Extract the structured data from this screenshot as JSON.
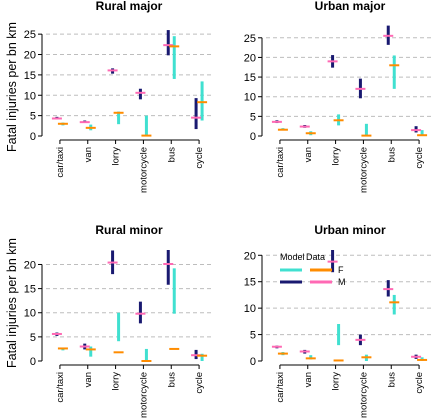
{
  "chart_data": {
    "type": "range-interval",
    "ylabel": "Fatal injuries per bn km",
    "categories": [
      "car/taxi",
      "van",
      "lorry",
      "motorcycle",
      "bus",
      "cycle"
    ],
    "legend": {
      "location": "top-left of Urban minor panel",
      "title_left": "Model",
      "title_right": "Data",
      "rows": [
        {
          "label": "F",
          "model_color": "#40e0d0",
          "data_color": "#ff8c00"
        },
        {
          "label": "M",
          "model_color": "#191970",
          "data_color": "#ff69b4"
        }
      ]
    },
    "colors": {
      "model_F": "#40e0d0",
      "model_M": "#191970",
      "data_F": "#ff8c00",
      "data_M": "#ff69b4",
      "grid": "#bdbdbd"
    },
    "panels": [
      {
        "title": "Rural major",
        "ylim": [
          0,
          27
        ],
        "yticks": [
          0,
          5,
          10,
          15,
          20,
          25
        ],
        "model_M": [
          [
            4.1,
            4.7
          ],
          [
            3.2,
            3.8
          ],
          [
            15.3,
            16.6
          ],
          [
            9.0,
            11.6
          ],
          [
            19.8,
            26.0
          ],
          [
            1.7,
            9.3
          ]
        ],
        "data_M": [
          4.3,
          3.4,
          16.1,
          10.6,
          22.3,
          4.5
        ],
        "model_F": [
          [
            2.6,
            3.3
          ],
          [
            1.4,
            2.8
          ],
          [
            2.9,
            6.0
          ],
          [
            0.2,
            5.0
          ],
          [
            14.0,
            24.5
          ],
          [
            3.8,
            13.4
          ]
        ],
        "data_F": [
          3.0,
          2.0,
          5.7,
          0.1,
          22.0,
          8.3
        ]
      },
      {
        "title": "Urban major",
        "ylim": [
          0,
          28
        ],
        "yticks": [
          0,
          5,
          10,
          15,
          20,
          25
        ],
        "model_M": [
          [
            3.3,
            4.0
          ],
          [
            2.1,
            2.8
          ],
          [
            17.4,
            20.6
          ],
          [
            9.6,
            14.6
          ],
          [
            23.2,
            28.1
          ],
          [
            0.9,
            2.5
          ]
        ],
        "data_M": [
          3.6,
          2.4,
          19.0,
          12.0,
          25.5,
          1.5
        ],
        "model_F": [
          [
            1.6,
            2.0
          ],
          [
            0.2,
            1.2
          ],
          [
            2.7,
            5.5
          ],
          [
            0.1,
            3.1
          ],
          [
            12.0,
            20.5
          ],
          [
            0.0,
            1.5
          ]
        ],
        "data_F": [
          1.6,
          0.7,
          4.0,
          0.1,
          18.0,
          0.2
        ]
      },
      {
        "title": "Rural minor",
        "ylim": [
          0,
          23
        ],
        "yticks": [
          0,
          5,
          10,
          15,
          20
        ],
        "model_M": [
          [
            5.2,
            5.9
          ],
          [
            2.4,
            3.6
          ],
          [
            18.0,
            22.9
          ],
          [
            7.8,
            12.3
          ],
          [
            15.8,
            23.0
          ],
          [
            0.4,
            2.3
          ]
        ],
        "data_M": [
          5.6,
          3.0,
          20.4,
          9.8,
          20.1,
          1.2
        ],
        "model_F": [
          [
            2.2,
            2.8
          ],
          [
            0.9,
            3.0
          ],
          [
            4.1,
            10.0
          ],
          [
            0.0,
            2.5
          ],
          [
            9.8,
            19.2
          ],
          [
            0.0,
            1.5
          ]
        ],
        "data_F": [
          2.6,
          2.4,
          1.8,
          0.0,
          2.5,
          1.1
        ]
      },
      {
        "title": "Urban minor",
        "ylim": [
          0,
          21
        ],
        "yticks": [
          0,
          5,
          10,
          15,
          20
        ],
        "model_M": [
          [
            2.4,
            2.9
          ],
          [
            1.4,
            2.1
          ],
          [
            16.8,
            21.0
          ],
          [
            3.0,
            5.0
          ],
          [
            12.2,
            15.3
          ],
          [
            0.4,
            1.2
          ]
        ],
        "data_M": [
          2.7,
          1.8,
          18.8,
          4.0,
          13.6,
          0.8
        ],
        "model_F": [
          [
            1.1,
            1.7
          ],
          [
            0.3,
            1.1
          ],
          [
            3.0,
            7.0
          ],
          [
            0.0,
            1.2
          ],
          [
            8.8,
            12.5
          ],
          [
            0.0,
            0.7
          ]
        ],
        "data_F": [
          1.4,
          0.5,
          0.1,
          0.7,
          11.1,
          0.2
        ]
      }
    ]
  }
}
